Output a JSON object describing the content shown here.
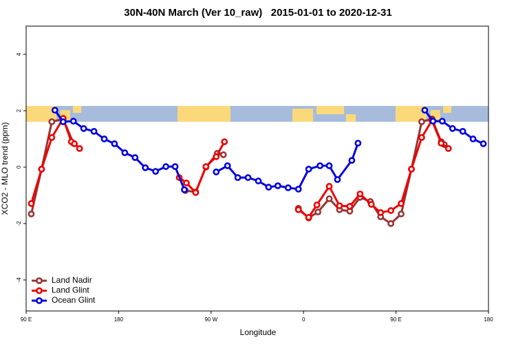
{
  "chart_data": {
    "type": "line",
    "title": "30N-40N March (Ver 10_raw)   2015-01-01 to 2020-12-31",
    "x_label": "Longitude",
    "y_label": "XCO2 - MLO trend (ppm)",
    "xlim": [
      90,
      540
    ],
    "xticks": [
      {
        "value": 90,
        "label": "90 E"
      },
      {
        "value": 180,
        "label": "180"
      },
      {
        "value": 270,
        "label": "90 W"
      },
      {
        "value": 360,
        "label": "0"
      },
      {
        "value": 450,
        "label": "90 E"
      },
      {
        "value": 540,
        "label": "180"
      }
    ],
    "ylim": [
      -5.1,
      5
    ],
    "yticks": [
      -4,
      -2,
      0,
      2,
      4
    ],
    "legend": "bottom-left",
    "series": [
      {
        "name": "Land Nadir",
        "color": "#993333",
        "x": [
          95,
          105,
          115,
          126,
          136,
          null,
          245,
          255,
          265,
          276,
          282,
          null,
          355,
          365,
          374,
          385,
          395,
          405,
          415,
          425,
          435,
          445,
          455,
          465,
          475,
          485,
          494,
          497
        ],
        "values": [
          -1.66,
          -0.07,
          1.61,
          1.71,
          0.85,
          null,
          -0.83,
          -0.88,
          0.0,
          0.49,
          0.44,
          null,
          -1.46,
          -1.8,
          -1.59,
          -1.12,
          -1.51,
          -1.56,
          -1.07,
          -1.22,
          -1.76,
          -2.0,
          -1.66,
          -0.07,
          1.61,
          1.71,
          0.9,
          0.8
        ]
      },
      {
        "name": "Land Glint",
        "color": "#ee0000",
        "x": [
          95,
          105,
          115,
          126,
          134,
          137,
          142,
          null,
          239,
          246,
          255,
          265,
          275,
          283,
          null,
          355,
          365,
          373,
          385,
          395,
          405,
          415,
          426,
          435,
          445,
          455,
          465,
          475,
          485,
          494,
          501
        ],
        "values": [
          -1.29,
          -0.07,
          1.05,
          1.73,
          0.9,
          0.83,
          0.66,
          null,
          -0.37,
          -0.56,
          -0.9,
          0.02,
          0.37,
          0.9,
          null,
          -1.51,
          -1.78,
          -1.34,
          -0.68,
          -1.37,
          -1.39,
          -0.95,
          -1.32,
          -1.61,
          -1.54,
          -1.29,
          -0.07,
          1.05,
          1.66,
          0.85,
          0.66
        ]
      },
      {
        "name": "Ocean Glint",
        "color": "#0000dd",
        "x": [
          118,
          126,
          136,
          146,
          156,
          166,
          176,
          186,
          196,
          206,
          216,
          226,
          235,
          244,
          null,
          275,
          286,
          296,
          306,
          316,
          326,
          335,
          345,
          355,
          365,
          376,
          385,
          393,
          407,
          413,
          null,
          478,
          486,
          495,
          505,
          515,
          525,
          535
        ],
        "values": [
          2.02,
          1.61,
          1.63,
          1.37,
          1.27,
          1.0,
          0.83,
          0.51,
          0.34,
          -0.02,
          -0.15,
          0.02,
          0.02,
          -0.8,
          null,
          -0.17,
          0.05,
          -0.37,
          -0.37,
          -0.49,
          -0.71,
          -0.66,
          -0.73,
          -0.78,
          -0.07,
          0.05,
          0.05,
          -0.44,
          0.24,
          0.85,
          null,
          2.02,
          1.63,
          1.63,
          1.37,
          1.27,
          1.0,
          0.83
        ]
      }
    ]
  }
}
